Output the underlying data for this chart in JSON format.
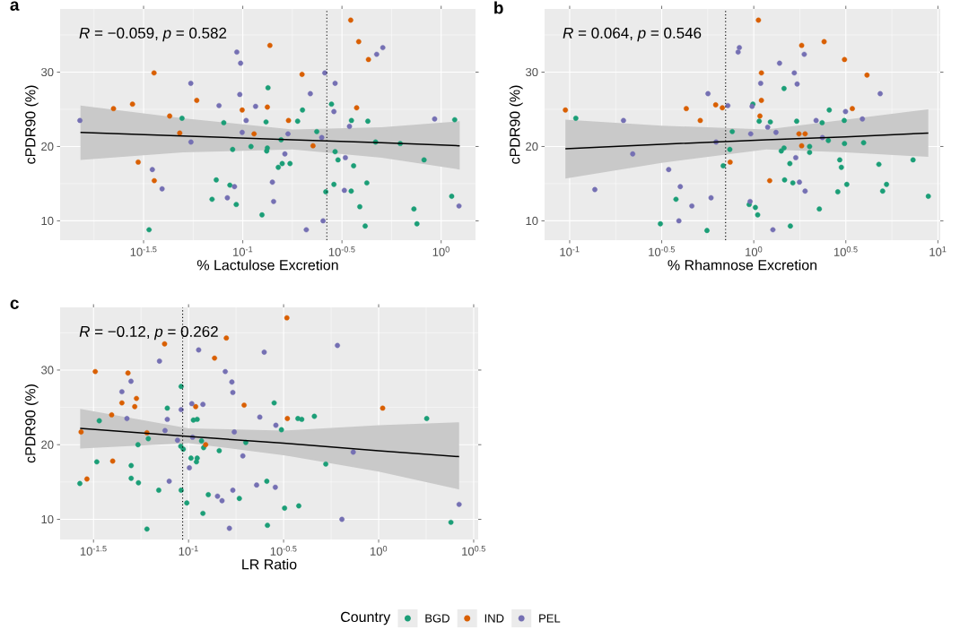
{
  "chart_data": [
    {
      "type": "scatter",
      "title": "a",
      "xlabel": "% Lactulose Excretion",
      "ylabel": "cPDR90 (%)",
      "annotations": [
        "*R* = −0.059, *p* = 0.582"
      ],
      "log": "x",
      "xlim": [
        0.012,
        1.49
      ],
      "ylim": [
        7.4,
        38.5
      ],
      "xticks": [
        {
          "value": 0.03162,
          "label": "10$^{-1.5}$"
        },
        {
          "value": 0.1,
          "label": "10$^{-1}$"
        },
        {
          "value": 0.3162,
          "label": "10$^{-0.5}$"
        },
        {
          "value": 1,
          "label": "10$^{0}$"
        }
      ],
      "yticks": [
        10,
        20,
        30
      ],
      "grid": true,
      "legend": "bottom",
      "legend_title": "Country",
      "ref_lines": [
        {
          "axis": "x",
          "value": 0.265,
          "line_style": "dotted",
          "color": "#000000"
        }
      ],
      "series": [
        {
          "name": "BGD",
          "marker": "circle",
          "color": "#1b9e77",
          "x": [
            0.134,
            0.28,
            0.2,
            0.0494,
            0.0802,
            0.131,
            0.189,
            0.353,
            0.427,
            1.17,
            0.236,
            0.156,
            0.467,
            0.622,
            0.11,
            0.0889,
            0.133,
            0.132,
            0.292,
            0.82,
            0.302,
            0.158,
            0.151,
            0.173,
            0.362,
            0.0735,
            0.0861,
            0.288,
            0.422,
            0.262,
            0.352,
            1.13,
            0.07,
            0.0927,
            0.389,
            0.729,
            0.125,
            0.755,
            0.414,
            0.0337
          ],
          "values": [
            27.9,
            25.7,
            24.9,
            23.8,
            23.2,
            23.3,
            23.4,
            23.5,
            23.4,
            23.6,
            22.0,
            20.9,
            20.6,
            20.4,
            20.0,
            19.6,
            19.8,
            19.4,
            19.3,
            18.2,
            18.2,
            17.7,
            17.2,
            17.7,
            17.4,
            15.5,
            14.8,
            14.9,
            15.1,
            13.9,
            14.0,
            13.3,
            12.9,
            12.2,
            11.9,
            11.6,
            10.8,
            9.6,
            9.3,
            8.8
          ]
        },
        {
          "name": "IND",
          "marker": "circle",
          "color": "#d95f02",
          "x": [
            0.35,
            0.137,
            0.384,
            0.43,
            0.0357,
            0.199,
            0.0586,
            0.0278,
            0.0223,
            0.0993,
            0.133,
            0.375,
            0.0428,
            0.17,
            0.0481,
            0.114,
            0.226,
            0.0297,
            0.0358
          ],
          "values": [
            37.0,
            33.6,
            34.1,
            31.7,
            29.9,
            29.7,
            26.2,
            25.7,
            25.1,
            24.9,
            25.3,
            25.2,
            24.1,
            23.5,
            21.8,
            21.7,
            20.1,
            17.9,
            15.4
          ]
        },
        {
          "name": "PEL",
          "marker": "circle",
          "color": "#7570b3",
          "x": [
            0.508,
            0.473,
            0.0933,
            0.0975,
            0.259,
            0.0547,
            0.292,
            0.219,
            0.0966,
            0.0759,
            0.116,
            0.288,
            0.0151,
            0.104,
            0.927,
            0.345,
            0.0993,
            0.169,
            0.25,
            0.0548,
            0.163,
            0.329,
            0.035,
            0.0392,
            0.0908,
            0.141,
            0.0836,
            0.143,
            0.325,
            1.23,
            0.254,
            0.209
          ],
          "values": [
            33.3,
            32.4,
            32.7,
            31.2,
            29.9,
            28.5,
            28.5,
            27.1,
            27.0,
            25.5,
            25.4,
            24.7,
            23.5,
            23.5,
            23.7,
            22.7,
            21.9,
            21.7,
            21.2,
            20.6,
            19.0,
            18.5,
            16.9,
            14.3,
            14.6,
            15.2,
            13.1,
            12.6,
            14.1,
            12.0,
            10.0,
            8.8
          ]
        },
        {
          "type": "line",
          "marker": "none",
          "color": "#000000",
          "x": [
            0.0152,
            0.0501,
            0.178,
            0.501,
            1.24
          ],
          "values": [
            21.9,
            21.4,
            20.9,
            20.5,
            20.1
          ],
          "lower": [
            18.2,
            19.2,
            19.6,
            18.5,
            16.9
          ],
          "upper": [
            25.5,
            23.8,
            22.3,
            22.6,
            23.4
          ]
        }
      ]
    },
    {
      "type": "scatter",
      "title": "b",
      "xlabel": "% Rhamnose Excretion",
      "ylabel": "cPDR90 (%)",
      "annotations": [
        "*R* = 0.064, *p* = 0.546"
      ],
      "log": "x",
      "xlim": [
        0.0731,
        10.3
      ],
      "ylim": [
        7.4,
        38.5
      ],
      "xticks": [
        {
          "value": 0.1,
          "label": "10$^{-1}$"
        },
        {
          "value": 0.3162,
          "label": "10$^{-0.5}$"
        },
        {
          "value": 1,
          "label": "10$^{0}$"
        },
        {
          "value": 3.162,
          "label": "10$^{0.5}$"
        },
        {
          "value": 10,
          "label": "10$^{1}$"
        }
      ],
      "yticks": [
        10,
        20,
        30
      ],
      "grid": true,
      "ref_lines": [
        {
          "axis": "x",
          "value": 0.703,
          "line_style": "dotted",
          "color": "#000000"
        }
      ],
      "series": [
        {
          "marker": "circle",
          "color": "#1b9e77",
          "x": [
            1.46,
            0.989,
            2.57,
            0.108,
            1.07,
            1.23,
            1.71,
            2.35,
            3.1,
            0.764,
            2.54,
            3.11,
            3.95,
            0.741,
            1.46,
            1.41,
            2.01,
            2.01,
            0.682,
            1.57,
            2.93,
            2.99,
            4.78,
            7.33,
            1.47,
            1.63,
            3.2,
            5.26,
            2.86,
            5.01,
            0.378,
            8.87,
            0.944,
            1.02,
            2.27,
            1.05,
            0.311,
            1.58,
            0.557
          ],
          "values": [
            27.8,
            25.7,
            24.9,
            23.8,
            23.4,
            23.3,
            23.4,
            23.2,
            23.5,
            22.0,
            20.8,
            20.4,
            20.5,
            19.6,
            19.8,
            19.4,
            20.0,
            19.2,
            17.4,
            17.7,
            18.2,
            17.2,
            17.6,
            18.2,
            15.5,
            15.1,
            14.9,
            14.9,
            13.9,
            14.0,
            12.9,
            13.3,
            12.2,
            11.8,
            11.6,
            10.8,
            9.6,
            9.3,
            8.7
          ]
        },
        {
          "marker": "circle",
          "color": "#d95f02",
          "x": [
            1.06,
            1.82,
            2.41,
            3.11,
            1.1,
            4.12,
            1.1,
            0.0948,
            0.43,
            0.621,
            0.675,
            0.512,
            1.08,
            3.43,
            1.76,
            1.9,
            1.82,
            0.744,
            1.22
          ],
          "values": [
            37.0,
            33.6,
            34.1,
            31.7,
            29.9,
            29.6,
            26.2,
            24.9,
            25.1,
            25.6,
            25.2,
            23.5,
            24.1,
            25.1,
            21.7,
            21.7,
            20.1,
            17.9,
            15.4
          ]
        },
        {
          "marker": "circle",
          "color": "#7570b3",
          "x": [
            0.835,
            0.822,
            1.88,
            1.38,
            1.66,
            1.09,
            1.72,
            0.564,
            4.86,
            0.723,
            0.979,
            3.15,
            0.196,
            2.18,
            3.89,
            1.19,
            1.32,
            0.962,
            0.624,
            2.36,
            0.22,
            1.69,
            0.345,
            0.137,
            0.399,
            1.77,
            0.586,
            1.9,
            0.461,
            0.955,
            0.392,
            1.27
          ],
          "values": [
            33.3,
            32.7,
            32.4,
            31.2,
            29.9,
            28.5,
            28.4,
            27.1,
            27.1,
            25.5,
            25.4,
            24.7,
            23.5,
            23.5,
            23.7,
            22.6,
            21.9,
            21.7,
            20.6,
            21.2,
            19.0,
            18.5,
            16.9,
            14.2,
            14.6,
            15.2,
            13.1,
            14.0,
            12.0,
            12.6,
            10.0,
            8.8
          ]
        },
        {
          "type": "line",
          "marker": "none",
          "color": "#000000",
          "x": [
            0.0948,
            0.316,
            1.17,
            3.16,
            8.87
          ],
          "values": [
            19.7,
            20.3,
            20.9,
            21.3,
            21.8
          ],
          "lower": [
            15.7,
            17.8,
            19.6,
            19.2,
            18.6
          ],
          "upper": [
            23.6,
            22.8,
            22.3,
            23.6,
            25.0
          ]
        }
      ]
    },
    {
      "type": "scatter",
      "title": "c",
      "xlabel": "LR Ratio",
      "ylabel": "cPDR90 (%)",
      "annotations": [
        "*R* = −0.12, *p* = 0.262"
      ],
      "log": "x",
      "xlim": [
        0.0211,
        3.34
      ],
      "ylim": [
        7.3,
        38.4
      ],
      "xticks": [
        {
          "value": 0.03162,
          "label": "10$^{-1.5}$"
        },
        {
          "value": 0.1,
          "label": "10$^{-1}$"
        },
        {
          "value": 0.3162,
          "label": "10$^{-0.5}$"
        },
        {
          "value": 1,
          "label": "10$^{0}$"
        },
        {
          "value": 3.162,
          "label": "10$^{0.5}$"
        }
      ],
      "yticks": [
        10,
        20,
        30
      ],
      "grid": true,
      "ref_lines": [
        {
          "axis": "x",
          "value": 0.0931,
          "line_style": "dotted",
          "color": "#000000"
        }
      ],
      "series": [
        {
          "marker": "circle",
          "color": "#1b9e77",
          "x": [
            0.0914,
            0.282,
            0.0773,
            0.0339,
            0.106,
            0.111,
            0.376,
            0.394,
            0.459,
            1.79,
            0.308,
            0.0614,
            0.117,
            0.2,
            0.0542,
            0.091,
            0.0938,
            0.12,
            0.145,
            0.103,
            0.111,
            0.11,
            0.527,
            0.0329,
            0.0499,
            0.0499,
            0.0545,
            0.0268,
            0.258,
            0.0697,
            0.0914,
            0.127,
            0.185,
            0.0979,
            0.38,
            0.32,
            0.119,
            2.4,
            0.26,
            0.0604
          ],
          "values": [
            27.8,
            25.6,
            24.9,
            23.2,
            23.3,
            23.4,
            23.5,
            23.4,
            23.8,
            23.5,
            22.0,
            20.8,
            20.5,
            20.3,
            20.0,
            19.8,
            19.4,
            19.6,
            19.2,
            18.2,
            18.2,
            17.7,
            17.4,
            17.7,
            17.2,
            15.5,
            14.9,
            14.8,
            15.1,
            13.9,
            13.9,
            13.3,
            12.8,
            12.2,
            11.8,
            11.5,
            10.8,
            9.6,
            9.2,
            8.7
          ]
        },
        {
          "marker": "circle",
          "color": "#d95f02",
          "x": [
            0.329,
            0.0748,
            0.158,
            0.137,
            0.0323,
            0.048,
            0.0446,
            0.0532,
            0.0521,
            0.109,
            0.196,
            1.05,
            0.0394,
            0.331,
            0.0272,
            0.0604,
            0.123,
            0.0399,
            0.0292
          ],
          "values": [
            37.0,
            33.5,
            34.3,
            31.6,
            29.8,
            29.6,
            25.6,
            26.2,
            25.1,
            25.1,
            25.3,
            24.9,
            24.0,
            23.5,
            21.7,
            21.6,
            20.0,
            17.8,
            15.4
          ]
        },
        {
          "marker": "circle",
          "color": "#7570b3",
          "x": [
            0.113,
            0.25,
            0.607,
            0.0703,
            0.156,
            0.0498,
            0.169,
            0.0446,
            0.171,
            0.104,
            0.119,
            0.0914,
            0.0474,
            0.0773,
            0.237,
            0.288,
            0.0752,
            0.174,
            0.105,
            0.0875,
            0.735,
            0.193,
            0.101,
            0.0791,
            0.228,
            0.286,
            0.171,
            0.142,
            0.15,
            2.65,
            0.641,
            0.164
          ],
          "values": [
            32.7,
            32.4,
            33.3,
            31.2,
            29.8,
            28.5,
            28.4,
            27.1,
            27.0,
            25.5,
            25.4,
            24.7,
            23.5,
            23.4,
            23.7,
            22.6,
            21.9,
            21.7,
            21.0,
            20.6,
            19.0,
            18.5,
            16.9,
            15.1,
            14.6,
            14.3,
            13.9,
            13.1,
            12.5,
            12.0,
            10.0,
            8.8
          ]
        },
        {
          "type": "line",
          "marker": "none",
          "color": "#000000",
          "x": [
            0.0269,
            0.1,
            0.316,
            1,
            2.65
          ],
          "values": [
            22.2,
            21.1,
            20.2,
            19.2,
            18.4
          ],
          "lower": [
            19.5,
            20.2,
            18.6,
            16.4,
            14.0
          ],
          "upper": [
            24.8,
            22.2,
            21.9,
            22.6,
            23.0
          ]
        }
      ]
    }
  ]
}
